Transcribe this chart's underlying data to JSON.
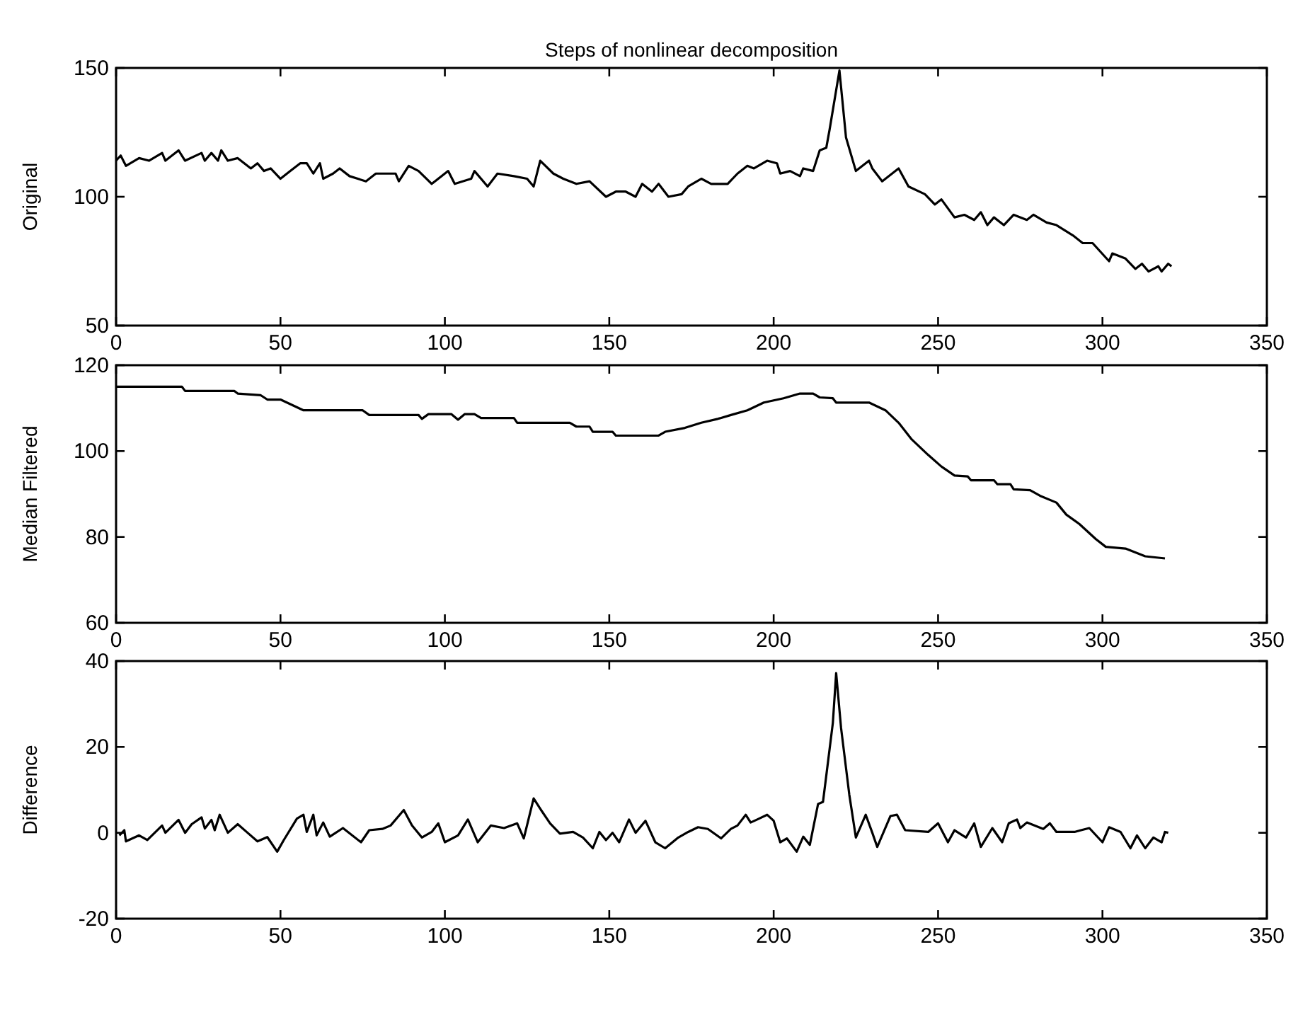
{
  "chart_data": [
    {
      "type": "line",
      "title": "Steps of nonlinear decomposition",
      "ylabel": "Original",
      "xlim": [
        0,
        350
      ],
      "xticks": [
        0,
        50,
        100,
        150,
        200,
        250,
        300,
        350
      ],
      "ylim": [
        50,
        150
      ],
      "yticks": [
        50,
        100,
        150
      ],
      "series": [
        {
          "color": "#000000",
          "x": [
            0,
            1.4,
            3,
            7,
            10,
            14,
            15,
            19,
            21,
            26,
            27,
            29,
            31,
            32,
            34,
            37,
            41,
            43,
            45,
            47,
            50,
            53,
            56,
            58,
            60,
            62,
            63,
            66,
            68,
            71,
            76,
            79,
            85,
            86,
            89,
            92,
            96,
            101,
            103,
            108,
            109,
            113,
            116,
            121,
            125,
            127,
            129,
            133,
            136,
            140,
            144,
            149,
            152,
            155,
            158,
            160,
            163,
            165,
            168,
            172,
            174,
            178,
            181,
            186,
            189,
            192,
            194,
            198,
            201,
            202,
            205,
            208,
            209,
            212,
            214,
            216,
            217,
            220,
            222,
            225,
            229,
            230,
            233,
            238,
            241,
            246,
            249,
            251,
            255,
            258,
            261,
            263,
            265,
            267,
            270,
            273,
            277,
            279,
            283,
            286,
            291,
            294,
            297,
            302,
            303,
            307,
            310,
            312,
            314,
            317,
            318,
            320,
            321
          ],
          "values": [
            114,
            116,
            112,
            115,
            114,
            117,
            114,
            118,
            114,
            117,
            114,
            117,
            114,
            118,
            114,
            115,
            111,
            113,
            110,
            111,
            107,
            110,
            113,
            113,
            109,
            113,
            107,
            109,
            111,
            108,
            106,
            109,
            109,
            106,
            112,
            110,
            105,
            110,
            105,
            107,
            110,
            104,
            109,
            108,
            107,
            104,
            114,
            109,
            107,
            105,
            106,
            100,
            102,
            102,
            100,
            105,
            102,
            105,
            100,
            101,
            104,
            107,
            105,
            105,
            109,
            112,
            111,
            114,
            113,
            109,
            110,
            108,
            111,
            110,
            118,
            119,
            126,
            149,
            123,
            110,
            114,
            111,
            106,
            111,
            104,
            101,
            97,
            99,
            92,
            93,
            91,
            94,
            89,
            92,
            89,
            93,
            91,
            93,
            90,
            89,
            85,
            82,
            82,
            75,
            78,
            76,
            72,
            74,
            71,
            73,
            71,
            74,
            73
          ]
        }
      ]
    },
    {
      "type": "line",
      "ylabel": "Median Filtered",
      "xlim": [
        0,
        350
      ],
      "xticks": [
        0,
        50,
        100,
        150,
        200,
        250,
        300,
        350
      ],
      "ylim": [
        60,
        120
      ],
      "yticks": [
        60,
        80,
        100,
        120
      ],
      "series": [
        {
          "color": "#000000",
          "x": [
            0,
            20,
            21,
            36,
            37,
            44,
            46,
            50,
            57,
            75,
            77,
            92,
            93,
            95,
            102,
            104,
            106,
            109,
            111,
            121,
            122,
            138,
            140,
            144,
            145,
            151,
            152,
            165,
            167,
            173,
            178,
            183,
            187,
            192,
            197,
            203,
            208,
            212,
            214,
            218,
            219,
            229,
            234,
            238,
            242,
            247,
            251,
            255,
            259,
            260,
            267,
            268,
            272,
            273,
            278,
            281,
            286,
            289,
            293,
            298,
            301,
            307,
            313,
            319
          ],
          "values": [
            115,
            115,
            114,
            114,
            113.4,
            113,
            112,
            112,
            109.5,
            109.5,
            108.4,
            108.4,
            107.5,
            108.6,
            108.6,
            107.3,
            108.6,
            108.6,
            107.7,
            107.7,
            106.6,
            106.6,
            105.7,
            105.7,
            104.5,
            104.5,
            103.6,
            103.6,
            104.5,
            105.4,
            106.6,
            107.5,
            108.4,
            109.5,
            111.3,
            112.3,
            113.4,
            113.4,
            112.5,
            112.3,
            111.3,
            111.3,
            109.5,
            106.6,
            102.7,
            99.1,
            96.4,
            94.3,
            94.1,
            93.2,
            93.2,
            92.3,
            92.3,
            91.1,
            90.9,
            89.6,
            88,
            85.2,
            83,
            79.5,
            77.7,
            77.3,
            75.5,
            75
          ]
        }
      ]
    },
    {
      "type": "line",
      "ylabel": "Difference",
      "xlim": [
        0,
        350
      ],
      "xticks": [
        0,
        50,
        100,
        150,
        200,
        250,
        300,
        350
      ],
      "ylim": [
        -20,
        40
      ],
      "yticks": [
        -20,
        0,
        20,
        40
      ],
      "series": [
        {
          "color": "#000000",
          "x": [
            1,
            2.5,
            3,
            7,
            9.5,
            14,
            15,
            19,
            21,
            23,
            26,
            27,
            29,
            30,
            31.5,
            34,
            37,
            40,
            43,
            46,
            49,
            51,
            55,
            57,
            58,
            60,
            61,
            63,
            65,
            69,
            74.5,
            77,
            81,
            83.5,
            87.5,
            90,
            93,
            96,
            98,
            100,
            104,
            107,
            110,
            114,
            118,
            122,
            124,
            127,
            129,
            132,
            135,
            139,
            142,
            145,
            147,
            149,
            151,
            153,
            156,
            158,
            161,
            164,
            167,
            171,
            174,
            177,
            180,
            184,
            187,
            189,
            191.5,
            193,
            195,
            198,
            200,
            202,
            204,
            207,
            209,
            211,
            213.5,
            215,
            216,
            218,
            219,
            220.5,
            223,
            225,
            228,
            230,
            231.5,
            235.5,
            237.5,
            240,
            247,
            250,
            253,
            255,
            258.5,
            261,
            263,
            266.5,
            269.5,
            271.5,
            274,
            275,
            277,
            282,
            284,
            286,
            291.5,
            296,
            300,
            302,
            305.5,
            308.5,
            310.5,
            313,
            315.5,
            318,
            319,
            320
          ],
          "values": [
            -0.6,
            0.6,
            -2,
            -0.6,
            -1.7,
            1.7,
            0,
            3,
            0,
            2,
            3.6,
            1,
            3,
            0.6,
            4.2,
            0,
            2,
            0,
            -2,
            -1,
            -4.4,
            -1.7,
            3.3,
            4.2,
            0.2,
            4.2,
            -0.6,
            2.4,
            -0.9,
            1.1,
            -2.2,
            0.6,
            0.9,
            1.7,
            5.3,
            1.7,
            -1.1,
            0.2,
            2.2,
            -2.2,
            -0.6,
            3.1,
            -2.2,
            1.7,
            1.1,
            2.2,
            -1.3,
            8,
            5.6,
            2.2,
            -0.2,
            0.2,
            -1.1,
            -3.6,
            0.2,
            -1.7,
            0,
            -2.2,
            3.1,
            0,
            2.8,
            -2.2,
            -3.6,
            -1.1,
            0.2,
            1.3,
            0.9,
            -1.3,
            0.9,
            1.7,
            4.2,
            2.4,
            3.1,
            4.2,
            2.8,
            -2.2,
            -1.3,
            -4.4,
            -0.9,
            -2.8,
            6.7,
            7.2,
            13.3,
            25.6,
            37.2,
            24.4,
            8.9,
            -1.1,
            4.2,
            0,
            -3.3,
            3.9,
            4.2,
            0.6,
            0.2,
            2.2,
            -2.2,
            0.6,
            -1.1,
            2.2,
            -3.3,
            1.1,
            -2.2,
            2.2,
            3.1,
            1.1,
            2.4,
            0.9,
            2.2,
            0.2,
            0.2,
            1.1,
            -2.2,
            1.3,
            0.2,
            -3.6,
            -0.6,
            -3.6,
            -1.1,
            -2.2,
            0.2,
            0
          ]
        }
      ]
    }
  ]
}
